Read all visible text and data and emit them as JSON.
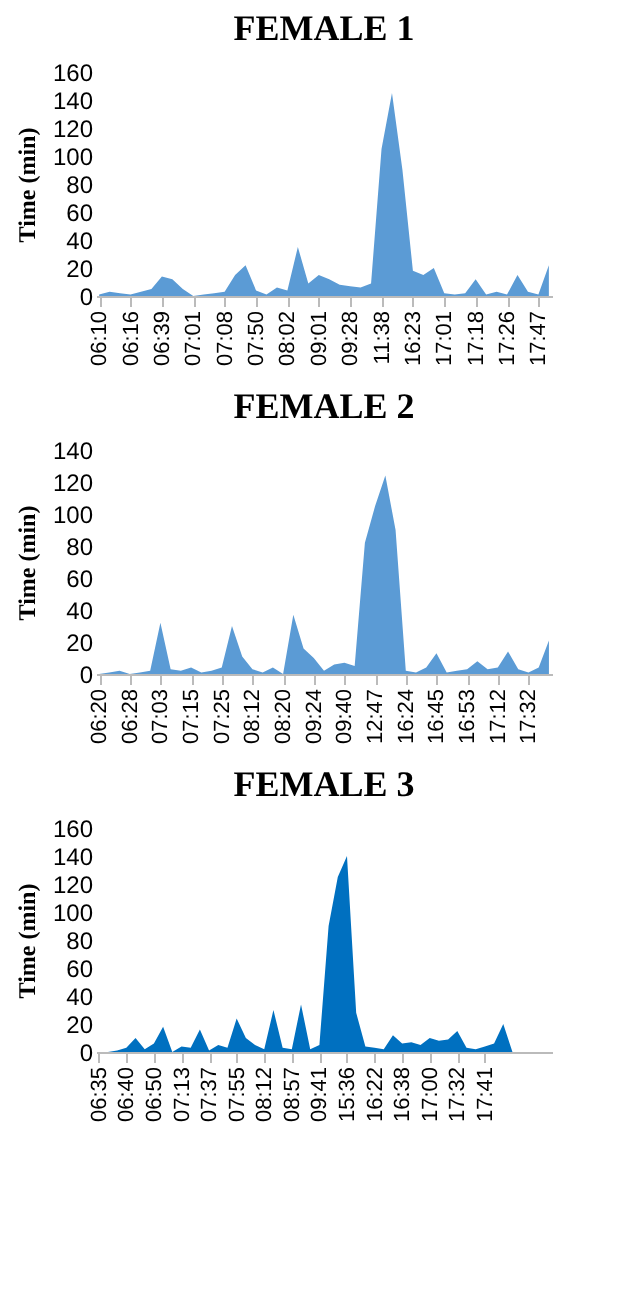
{
  "chart_data": [
    {
      "type": "area",
      "title": "FEMALE 1",
      "ylabel": "Time (min)",
      "color": "#5b9bd5",
      "ylim": [
        0,
        160
      ],
      "yticks": [
        0,
        20,
        40,
        60,
        80,
        100,
        120,
        140,
        160
      ],
      "categories": [
        "06:10",
        null,
        null,
        "06:16",
        null,
        null,
        "06:39",
        null,
        null,
        "07:01",
        null,
        null,
        "07:08",
        null,
        null,
        "07:50",
        null,
        null,
        "08:02",
        null,
        null,
        "09:01",
        null,
        null,
        "09:28",
        null,
        null,
        "11:38",
        null,
        null,
        "16:23",
        null,
        null,
        "17:01",
        null,
        null,
        "17:18",
        null,
        null,
        "17:26",
        null,
        null,
        "17:47",
        null
      ],
      "values": [
        1,
        3,
        2,
        1,
        3,
        5,
        14,
        12,
        5,
        0,
        1,
        2,
        3,
        15,
        22,
        4,
        1,
        6,
        4,
        35,
        9,
        15,
        12,
        8,
        7,
        6,
        9,
        105,
        145,
        90,
        18,
        15,
        20,
        2,
        1,
        2,
        12,
        1,
        3,
        1,
        15,
        3,
        1,
        22
      ]
    },
    {
      "type": "area",
      "title": "FEMALE 2",
      "ylabel": "Time (min)",
      "color": "#5b9bd5",
      "ylim": [
        0,
        140
      ],
      "yticks": [
        0,
        20,
        40,
        60,
        80,
        100,
        120,
        140
      ],
      "categories": [
        "06:20",
        null,
        null,
        "06:28",
        null,
        null,
        "07:03",
        null,
        null,
        "07:15",
        null,
        null,
        "07:25",
        null,
        null,
        "08:12",
        null,
        null,
        "08:20",
        null,
        null,
        "09:24",
        null,
        null,
        "09:40",
        null,
        null,
        "12:47",
        null,
        null,
        "16:24",
        null,
        null,
        "16:45",
        null,
        null,
        "16:53",
        null,
        null,
        "17:12",
        null,
        null,
        "17:32",
        null,
        null
      ],
      "values": [
        0,
        1,
        2,
        0,
        1,
        2,
        32,
        3,
        2,
        4,
        1,
        2,
        4,
        30,
        11,
        3,
        1,
        4,
        0,
        37,
        16,
        10,
        2,
        6,
        7,
        5,
        82,
        105,
        124,
        90,
        2,
        1,
        4,
        13,
        1,
        2,
        3,
        8,
        3,
        4,
        14,
        3,
        1,
        4,
        21
      ]
    },
    {
      "type": "area",
      "title": "FEMALE 3",
      "ylabel": "Time (min)",
      "color": "#0070c0",
      "ylim": [
        0,
        160
      ],
      "yticks": [
        0,
        20,
        40,
        60,
        80,
        100,
        120,
        140,
        160
      ],
      "categories": [
        "06:35",
        null,
        null,
        "06:40",
        null,
        null,
        "06:50",
        null,
        null,
        "07:13",
        null,
        null,
        "07:37",
        null,
        null,
        "07:55",
        null,
        null,
        "08:12",
        null,
        null,
        "08:57",
        null,
        null,
        "09:41",
        null,
        null,
        "15:36",
        null,
        null,
        "16:22",
        null,
        null,
        "16:38",
        null,
        null,
        "17:00",
        null,
        null,
        "17:32",
        null,
        null,
        "17:41",
        null,
        null,
        null,
        null,
        null,
        null,
        null
      ],
      "values": [
        0,
        0,
        1,
        3,
        10,
        2,
        6,
        18,
        0,
        4,
        3,
        16,
        1,
        5,
        3,
        24,
        10,
        5,
        2,
        30,
        3,
        2,
        34,
        2,
        5,
        90,
        125,
        140,
        28,
        4,
        3,
        2,
        12,
        6,
        7,
        5,
        10,
        8,
        9,
        15,
        3,
        2,
        4,
        6,
        20,
        0,
        null,
        null,
        null,
        null
      ]
    }
  ]
}
